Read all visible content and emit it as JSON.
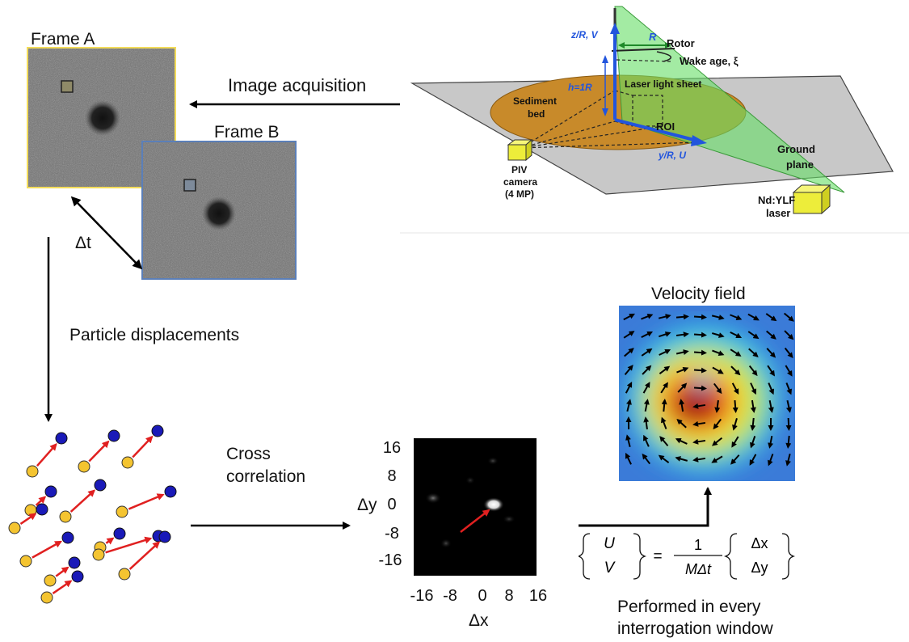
{
  "labels": {
    "frame_a": "Frame A",
    "frame_b": "Frame B",
    "image_acquisition": "Image acquisition",
    "dt": "Δt",
    "particle_displacements": "Particle displacements",
    "cross_correlation_1": "Cross",
    "cross_correlation_2": "correlation",
    "velocity_field": "Velocity field",
    "performed_1": "Performed in every",
    "performed_2": "interrogation window"
  },
  "setup": {
    "z_axis": "z/R, V",
    "r_label": "R",
    "rotor": "Rotor",
    "wake_age": "Wake age, ξ",
    "laser_sheet": "Laser light sheet",
    "h_label": "h=1R",
    "sediment_1": "Sediment",
    "sediment_2": "bed",
    "roi": "ROI",
    "y_axis": "y/R, U",
    "ground_1": "Ground",
    "ground_2": "plane",
    "camera_1": "PIV",
    "camera_2": "camera",
    "camera_3": "(4 MP)",
    "laser_1": "Nd:YLF",
    "laser_2": "laser"
  },
  "correlation_plot": {
    "y_ticks": [
      "16",
      "8",
      "0",
      "-8",
      "-16"
    ],
    "x_ticks": [
      "-16",
      "-8",
      "0",
      "8",
      "16"
    ],
    "xlabel": "Δx",
    "ylabel": "Δy"
  },
  "formula": {
    "U": "U",
    "V": "V",
    "equals": "=",
    "numerator": "1",
    "denominator": "MΔt",
    "dx": "Δx",
    "dy": "Δy"
  },
  "colors": {
    "particle_a": "#f4c430",
    "particle_b": "#1a1ab8",
    "displacement": "#e02020",
    "sediment": "#c88a2a",
    "sheet": "#66dd66",
    "axis_blue": "#2255dd",
    "frame_a_border": "#f3dc5a",
    "frame_b_border": "#5b7fb8"
  }
}
